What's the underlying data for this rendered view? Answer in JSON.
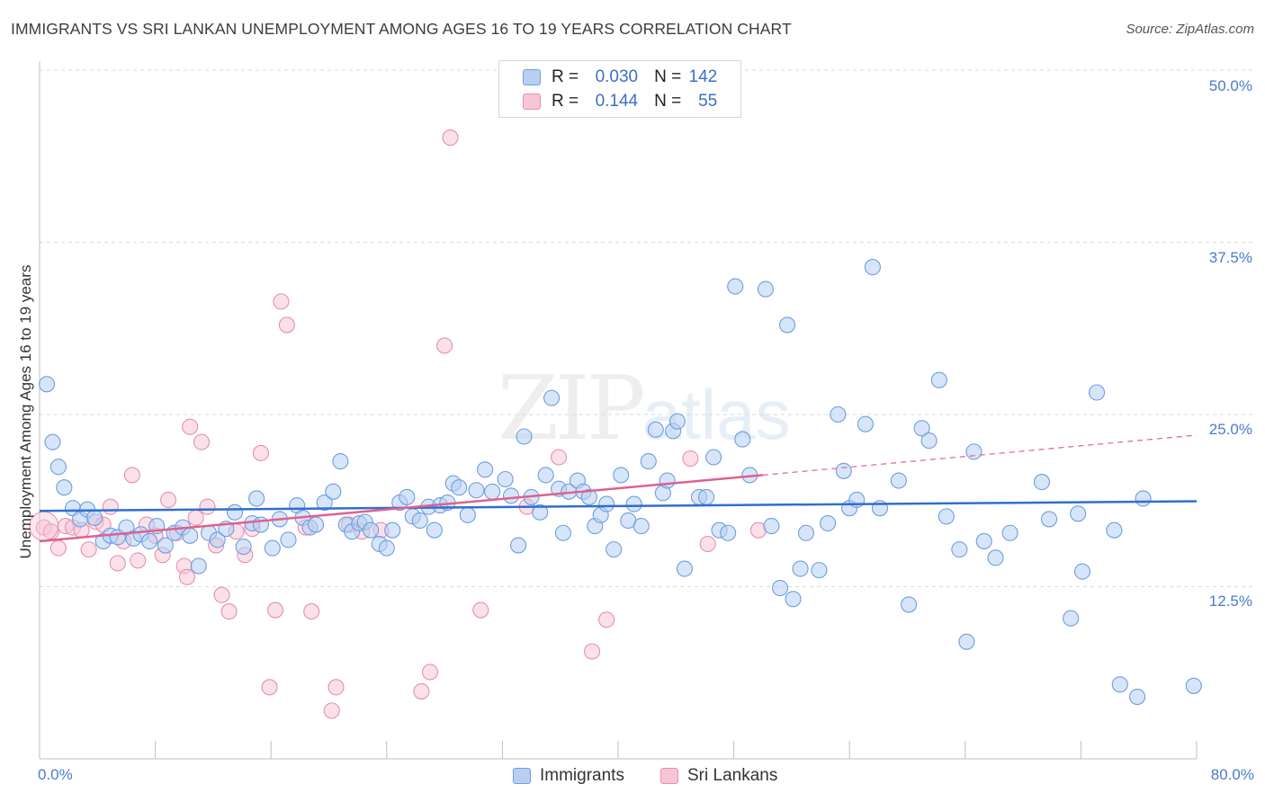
{
  "title": "IMMIGRANTS VS SRI LANKAN UNEMPLOYMENT AMONG AGES 16 TO 19 YEARS CORRELATION CHART",
  "source": "Source: ZipAtlas.com",
  "watermark": {
    "zip": "ZIP",
    "atlas": "atlas"
  },
  "legend": {
    "r_label": "R =",
    "n_label": "N =",
    "rows": [
      {
        "r": "0.030",
        "n": "142"
      },
      {
        "r": "0.144",
        "n": "55"
      }
    ]
  },
  "bottom_legend": [
    "Immigrants",
    "Sri Lankans"
  ],
  "colors": {
    "immigrants_fill": "#b7d0f2",
    "immigrants_stroke": "#6e9ee0",
    "immigrants_line": "#2f6fcc",
    "srilankans_fill": "#f6c6d6",
    "srilankans_stroke": "#e88fae",
    "srilankans_line": "#e0608e",
    "tick_text": "#4a7ccc"
  },
  "chart_data": {
    "type": "scatter",
    "title": "IMMIGRANTS VS SRI LANKAN UNEMPLOYMENT AMONG AGES 16 TO 19 YEARS CORRELATION CHART",
    "xlabel": "",
    "ylabel": "Unemployment Among Ages 16 to 19 years",
    "xlim": [
      0,
      80
    ],
    "ylim": [
      0,
      50
    ],
    "x_tick_labels": [
      "0.0%",
      "80.0%"
    ],
    "y_tick_labels": [
      "12.5%",
      "25.0%",
      "37.5%",
      "50.0%"
    ],
    "y_ticks": [
      12.5,
      25,
      37.5,
      50
    ],
    "grid": "horizontal dashed",
    "legend_position": "top-center",
    "series": [
      {
        "name": "Immigrants",
        "r": 0.03,
        "n": 142,
        "trend": {
          "x": [
            0,
            80
          ],
          "y": [
            18.0,
            18.7
          ]
        },
        "points": [
          [
            0.5,
            27.2
          ],
          [
            0.9,
            23.0
          ],
          [
            1.3,
            21.2
          ],
          [
            1.7,
            19.7
          ],
          [
            2.3,
            18.2
          ],
          [
            2.8,
            17.4
          ],
          [
            3.3,
            18.1
          ],
          [
            3.8,
            17.5
          ],
          [
            4.4,
            15.8
          ],
          [
            4.9,
            16.2
          ],
          [
            5.4,
            16.1
          ],
          [
            6.0,
            16.8
          ],
          [
            6.5,
            16.0
          ],
          [
            7.0,
            16.3
          ],
          [
            7.6,
            15.8
          ],
          [
            8.1,
            16.9
          ],
          [
            8.7,
            15.5
          ],
          [
            9.3,
            16.4
          ],
          [
            9.9,
            16.8
          ],
          [
            10.4,
            16.2
          ],
          [
            11.0,
            14.0
          ],
          [
            11.7,
            16.4
          ],
          [
            12.3,
            15.9
          ],
          [
            12.9,
            16.7
          ],
          [
            13.5,
            17.9
          ],
          [
            14.1,
            15.4
          ],
          [
            14.7,
            17.1
          ],
          [
            15.3,
            17.0
          ],
          [
            15.0,
            18.9
          ],
          [
            16.1,
            15.3
          ],
          [
            16.6,
            17.4
          ],
          [
            17.2,
            15.9
          ],
          [
            17.8,
            18.4
          ],
          [
            18.2,
            17.5
          ],
          [
            18.7,
            16.8
          ],
          [
            19.1,
            17.0
          ],
          [
            19.7,
            18.6
          ],
          [
            20.3,
            19.4
          ],
          [
            20.8,
            21.6
          ],
          [
            21.2,
            17.0
          ],
          [
            21.6,
            16.5
          ],
          [
            22.1,
            17.1
          ],
          [
            22.5,
            17.2
          ],
          [
            22.9,
            16.6
          ],
          [
            23.5,
            15.6
          ],
          [
            24.0,
            15.3
          ],
          [
            24.4,
            16.6
          ],
          [
            24.9,
            18.6
          ],
          [
            25.4,
            19.0
          ],
          [
            25.8,
            17.6
          ],
          [
            26.3,
            17.3
          ],
          [
            26.9,
            18.3
          ],
          [
            27.3,
            16.6
          ],
          [
            27.7,
            18.4
          ],
          [
            28.2,
            18.6
          ],
          [
            28.6,
            20.0
          ],
          [
            29.0,
            19.7
          ],
          [
            29.6,
            17.7
          ],
          [
            30.2,
            19.5
          ],
          [
            30.8,
            21.0
          ],
          [
            31.3,
            19.4
          ],
          [
            32.2,
            20.3
          ],
          [
            32.6,
            19.1
          ],
          [
            33.1,
            15.5
          ],
          [
            33.5,
            23.4
          ],
          [
            34.0,
            19.0
          ],
          [
            34.6,
            17.9
          ],
          [
            35.0,
            20.6
          ],
          [
            35.4,
            26.2
          ],
          [
            35.9,
            19.6
          ],
          [
            36.2,
            16.4
          ],
          [
            36.6,
            19.4
          ],
          [
            37.2,
            20.2
          ],
          [
            37.6,
            19.4
          ],
          [
            38.0,
            19.0
          ],
          [
            38.4,
            16.9
          ],
          [
            38.8,
            17.7
          ],
          [
            39.2,
            18.5
          ],
          [
            39.7,
            15.2
          ],
          [
            40.2,
            20.6
          ],
          [
            40.7,
            17.3
          ],
          [
            41.1,
            18.5
          ],
          [
            41.6,
            16.9
          ],
          [
            42.1,
            21.6
          ],
          [
            42.6,
            23.9
          ],
          [
            43.1,
            19.3
          ],
          [
            43.4,
            20.2
          ],
          [
            43.8,
            23.8
          ],
          [
            44.1,
            24.5
          ],
          [
            44.6,
            13.8
          ],
          [
            45.6,
            19.0
          ],
          [
            46.1,
            19.0
          ],
          [
            46.6,
            21.9
          ],
          [
            47.0,
            16.6
          ],
          [
            47.6,
            16.4
          ],
          [
            48.1,
            34.3
          ],
          [
            48.6,
            23.2
          ],
          [
            49.1,
            20.6
          ],
          [
            50.2,
            34.1
          ],
          [
            50.6,
            16.9
          ],
          [
            51.2,
            12.4
          ],
          [
            51.7,
            31.5
          ],
          [
            52.1,
            11.6
          ],
          [
            52.6,
            13.8
          ],
          [
            53.0,
            16.4
          ],
          [
            53.9,
            13.7
          ],
          [
            54.5,
            17.1
          ],
          [
            55.2,
            25.0
          ],
          [
            55.6,
            20.9
          ],
          [
            56.0,
            18.2
          ],
          [
            56.5,
            18.8
          ],
          [
            57.1,
            24.3
          ],
          [
            57.6,
            35.7
          ],
          [
            58.1,
            18.2
          ],
          [
            59.4,
            20.2
          ],
          [
            60.1,
            11.2
          ],
          [
            61.0,
            24.0
          ],
          [
            61.5,
            23.1
          ],
          [
            62.2,
            27.5
          ],
          [
            62.7,
            17.6
          ],
          [
            63.6,
            15.2
          ],
          [
            64.1,
            8.5
          ],
          [
            64.6,
            22.3
          ],
          [
            65.3,
            15.8
          ],
          [
            66.1,
            14.6
          ],
          [
            67.1,
            16.4
          ],
          [
            69.3,
            20.1
          ],
          [
            69.8,
            17.4
          ],
          [
            71.3,
            10.2
          ],
          [
            71.8,
            17.8
          ],
          [
            72.1,
            13.6
          ],
          [
            73.1,
            26.6
          ],
          [
            74.3,
            16.6
          ],
          [
            74.7,
            5.4
          ],
          [
            75.9,
            4.5
          ],
          [
            76.3,
            18.9
          ],
          [
            79.8,
            5.3
          ]
        ]
      },
      {
        "name": "Sri Lankans",
        "r": 0.144,
        "n": 55,
        "trend": {
          "x": [
            0,
            50
          ],
          "y": [
            15.8,
            20.6
          ]
        },
        "trend_dashed": {
          "x": [
            50,
            80
          ],
          "y": [
            20.6,
            23.5
          ]
        },
        "points": [
          [
            0.3,
            16.8
          ],
          [
            0.8,
            16.5
          ],
          [
            1.3,
            15.3
          ],
          [
            1.8,
            16.9
          ],
          [
            2.3,
            16.8
          ],
          [
            2.9,
            16.6
          ],
          [
            3.4,
            15.2
          ],
          [
            3.9,
            17.2
          ],
          [
            4.4,
            17.0
          ],
          [
            4.9,
            18.3
          ],
          [
            5.4,
            14.2
          ],
          [
            5.8,
            15.8
          ],
          [
            6.4,
            20.6
          ],
          [
            6.8,
            14.4
          ],
          [
            7.4,
            17.0
          ],
          [
            8.0,
            16.2
          ],
          [
            8.5,
            14.8
          ],
          [
            8.9,
            18.8
          ],
          [
            9.5,
            16.4
          ],
          [
            10.0,
            14.0
          ],
          [
            10.4,
            24.1
          ],
          [
            10.8,
            17.5
          ],
          [
            10.2,
            13.2
          ],
          [
            11.2,
            23.0
          ],
          [
            11.6,
            18.3
          ],
          [
            12.2,
            15.5
          ],
          [
            12.6,
            11.9
          ],
          [
            13.1,
            10.7
          ],
          [
            13.6,
            16.5
          ],
          [
            14.2,
            14.8
          ],
          [
            14.7,
            16.7
          ],
          [
            15.3,
            22.2
          ],
          [
            15.9,
            5.2
          ],
          [
            16.3,
            10.8
          ],
          [
            16.7,
            33.2
          ],
          [
            17.1,
            31.5
          ],
          [
            18.4,
            16.8
          ],
          [
            18.8,
            10.7
          ],
          [
            20.2,
            3.5
          ],
          [
            20.5,
            5.2
          ],
          [
            21.4,
            17.0
          ],
          [
            22.3,
            16.5
          ],
          [
            23.6,
            16.6
          ],
          [
            26.4,
            4.9
          ],
          [
            27.0,
            6.3
          ],
          [
            28.0,
            30.0
          ],
          [
            28.4,
            45.1
          ],
          [
            30.5,
            10.8
          ],
          [
            33.7,
            18.3
          ],
          [
            35.9,
            21.9
          ],
          [
            38.2,
            7.8
          ],
          [
            39.2,
            10.1
          ],
          [
            45.0,
            21.8
          ],
          [
            46.2,
            15.6
          ],
          [
            49.7,
            16.6
          ]
        ]
      }
    ]
  }
}
